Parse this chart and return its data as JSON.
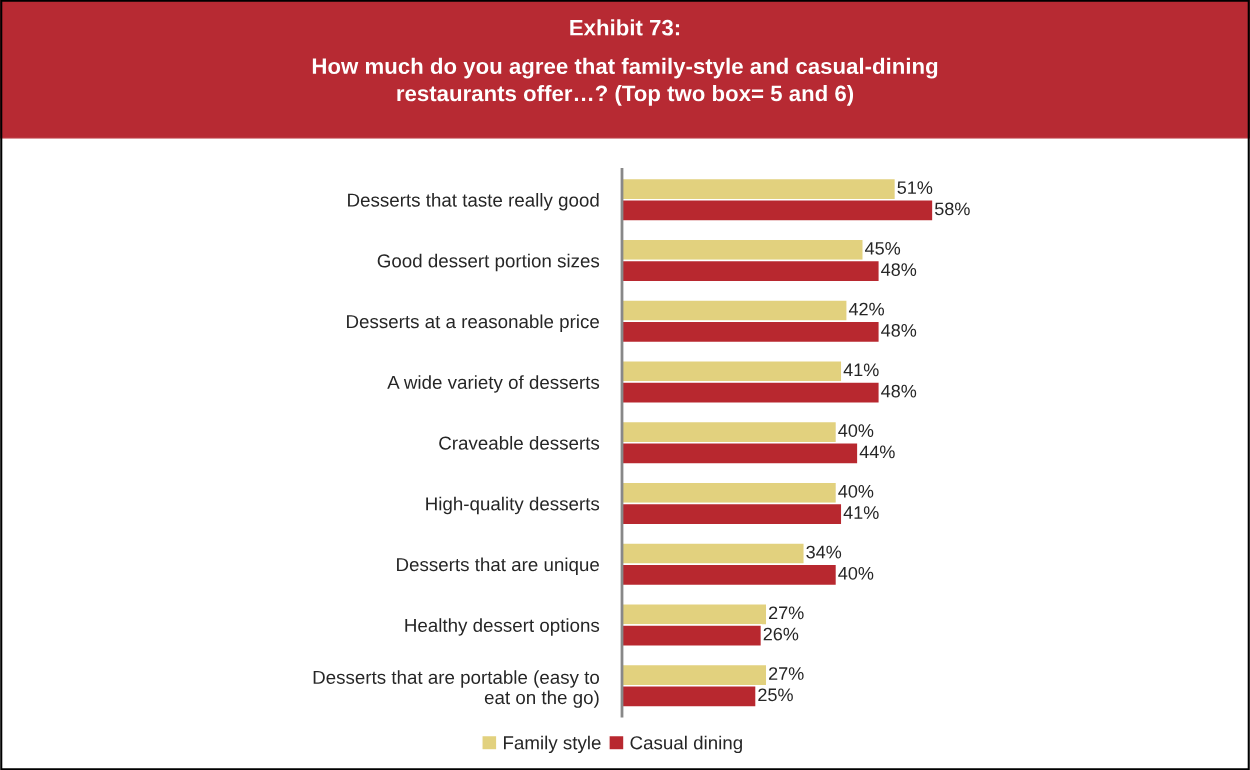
{
  "chart_data": {
    "type": "bar",
    "orientation": "horizontal",
    "title": "Exhibit 73:",
    "subtitle": "How much do you agree that family-style and casual-dining\nrestaurants offer…? (Top two box= 5 and 6)",
    "categories": [
      "Desserts that taste really good",
      "Good dessert portion sizes",
      "Desserts at a reasonable price",
      "A wide variety of desserts",
      "Craveable desserts",
      "High-quality desserts",
      "Desserts that are unique",
      "Healthy dessert options",
      "Desserts that are portable (easy to\neat on the go)"
    ],
    "series": [
      {
        "name": "Family style",
        "color": "#e2d17e",
        "values": [
          51,
          45,
          42,
          41,
          40,
          40,
          34,
          27,
          27
        ],
        "value_labels": [
          "51%",
          "45%",
          "42%",
          "41%",
          "40%",
          "40%",
          "34%",
          "27%",
          "27%"
        ]
      },
      {
        "name": "Casual dining",
        "color": "#b8282f",
        "values": [
          58,
          48,
          48,
          48,
          44,
          41,
          40,
          26,
          25
        ],
        "value_labels": [
          "58%",
          "48%",
          "48%",
          "48%",
          "44%",
          "41%",
          "40%",
          "26%",
          "25%"
        ]
      }
    ],
    "legend": "bottom"
  }
}
